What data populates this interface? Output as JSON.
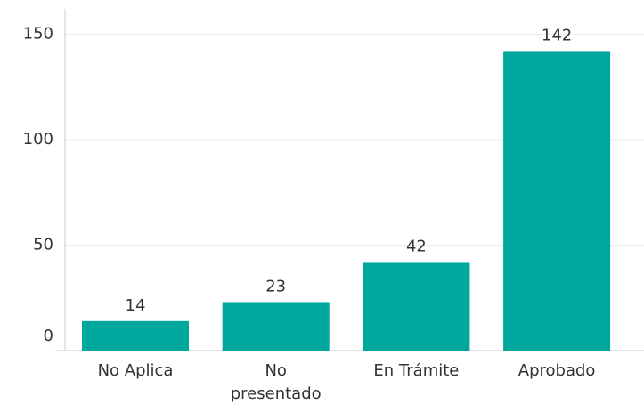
{
  "chart_data": {
    "type": "bar",
    "categories": [
      "No Aplica",
      "No presentado",
      "En Trámite",
      "Aprobado"
    ],
    "values": [
      14,
      23,
      42,
      142
    ],
    "color": "#00a79d",
    "ylim": [
      0,
      162
    ],
    "yticks": [
      0,
      50,
      100,
      150
    ],
    "grid": true
  }
}
